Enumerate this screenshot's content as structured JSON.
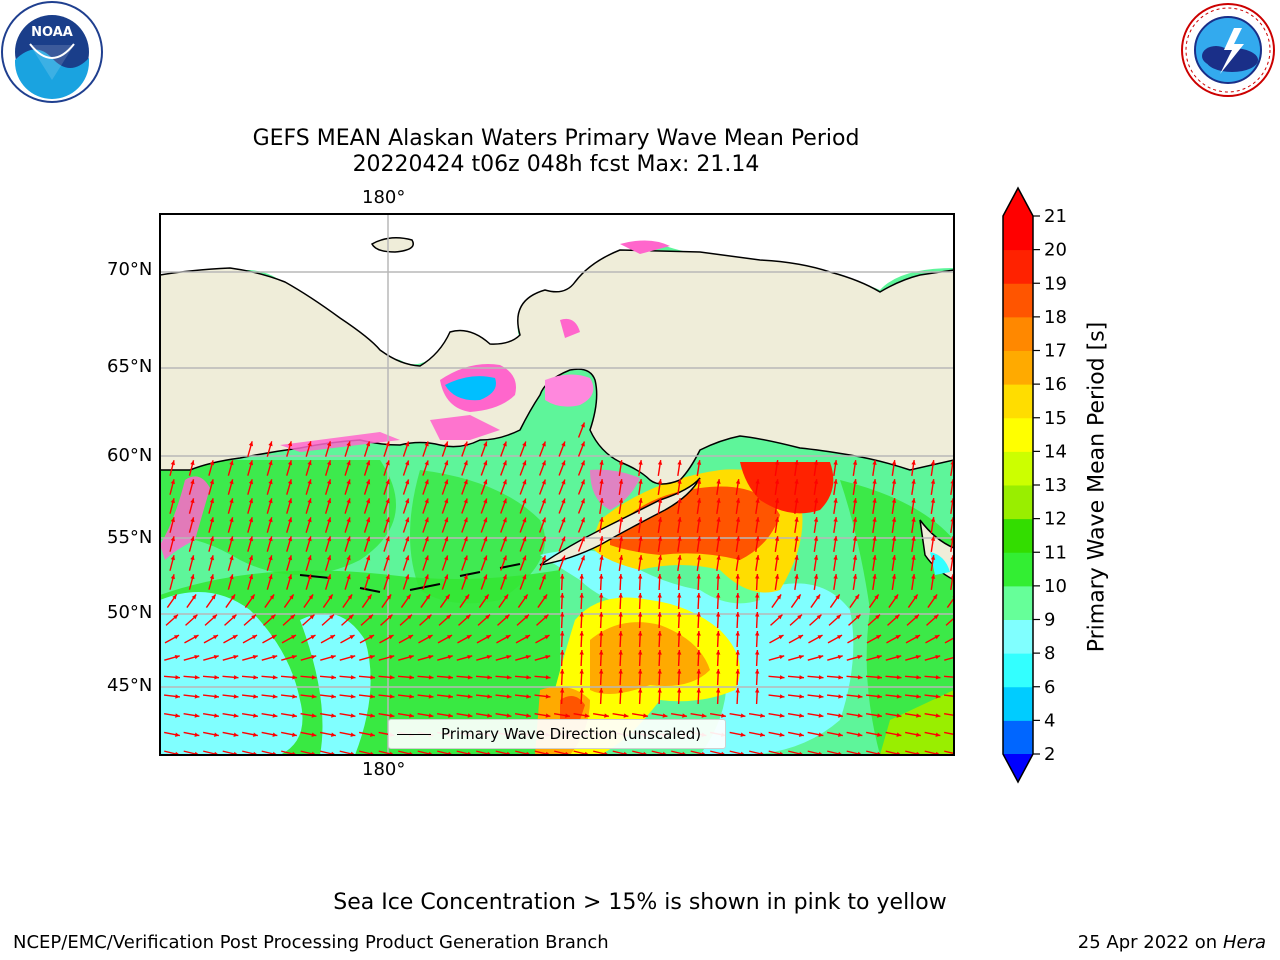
{
  "header": {
    "title_line1": "GEFS MEAN Alaskan Waters Primary Wave Mean Period",
    "title_line2": "20220424 t06z 048h fcst   Max: 21.14"
  },
  "logos": {
    "left": {
      "icon": "noaa-logo-icon",
      "text": "NOAA",
      "ring_text": "NATIONAL OCEANIC AND ATMOSPHERIC ADMINISTRATION · U.S. DEPARTMENT OF COMMERCE"
    },
    "right": {
      "icon": "nws-logo-icon",
      "ring_text": "NATIONAL WEATHER SERVICE"
    }
  },
  "map": {
    "lon_label_top": "180°",
    "lon_label_bottom": "180°",
    "lat_labels": [
      "70°N",
      "65°N",
      "60°N",
      "55°N",
      "50°N",
      "45°N"
    ],
    "legend": "Primary Wave Direction (unscaled)",
    "colors": {
      "land": "#efedd9",
      "ocean_base": "#5ef59a",
      "arrow": "#ff0000",
      "grid": "#b8b8b8"
    }
  },
  "colorbar": {
    "label": "Primary Wave Mean Period [s]",
    "ticks": [
      "2",
      "4",
      "6",
      "8",
      "9",
      "10",
      "11",
      "12",
      "13",
      "14",
      "15",
      "16",
      "17",
      "18",
      "19",
      "20",
      "21"
    ],
    "under_color": "#0000ff",
    "over_color": "#ff0000",
    "colors": [
      "#0066ff",
      "#00ccff",
      "#33ffff",
      "#80ffff",
      "#66ff99",
      "#33ee33",
      "#33dd00",
      "#99ee00",
      "#ccff00",
      "#ffff00",
      "#ffdd00",
      "#ffaa00",
      "#ff8800",
      "#ff5500",
      "#ff2200",
      "#ff0000"
    ]
  },
  "footer": {
    "note": "Sea Ice Concentration > 15% is shown in pink to yellow",
    "left": "NCEP/EMC/Verification Post Processing Product Generation Branch",
    "date": "25 Apr 2022 on",
    "machine": "Hera"
  }
}
